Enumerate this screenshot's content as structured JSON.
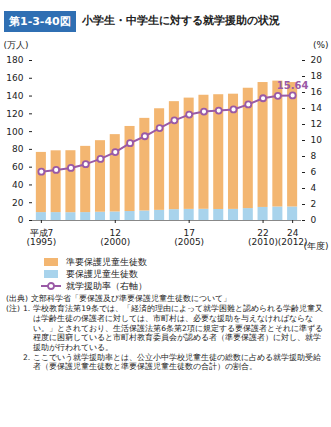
{
  "chart_data": {
    "type": "bar",
    "figure_number": "第1-3-40図",
    "title": "小学生・中学生に対する就学援助の状況",
    "categories": [
      "平成7\n(1995)",
      null,
      null,
      null,
      null,
      "12\n(2000)",
      null,
      null,
      null,
      null,
      "17\n(2005)",
      null,
      null,
      null,
      null,
      "22\n(2010)",
      null,
      "24\n(2012)"
    ],
    "xlabel": "(年度)",
    "ylabel": "(万人)",
    "y2label": "(%)",
    "stacked": true,
    "series": [
      {
        "name": "準要保護児童生徒数",
        "type": "bar",
        "color": "#f3b671",
        "values": [
          67.7,
          69.5,
          69.7,
          74.5,
          80.5,
          87.0,
          95.7,
          104.2,
          114.3,
          121.5,
          125.2,
          128.3,
          129.1,
          129.6,
          135.4,
          140.5,
          141.6,
          140.0
        ]
      },
      {
        "name": "要保護児童生徒数",
        "type": "bar",
        "color": "#a8d3ec",
        "values": [
          8.9,
          8.9,
          8.8,
          8.9,
          9.3,
          9.6,
          10.1,
          10.7,
          11.4,
          12.2,
          12.5,
          12.6,
          12.4,
          12.5,
          13.4,
          14.7,
          15.2,
          15.2
        ]
      },
      {
        "name": "就学援助率（右軸）",
        "type": "line",
        "axis": "y2",
        "color": "#9a5aa6",
        "marker": "circle",
        "values": [
          6.1,
          6.32,
          6.57,
          7.04,
          7.7,
          8.55,
          9.66,
          10.53,
          11.55,
          12.52,
          13.24,
          13.62,
          13.74,
          13.88,
          14.51,
          15.28,
          15.58,
          15.64
        ],
        "value_labels": [
          null,
          null,
          null,
          null,
          null,
          null,
          null,
          null,
          null,
          null,
          null,
          null,
          null,
          null,
          null,
          null,
          null,
          "15.64"
        ]
      }
    ],
    "ylim": [
      0,
      180
    ],
    "yticks": [
      0,
      20,
      40,
      60,
      80,
      100,
      120,
      140,
      160,
      180
    ],
    "y2lim": [
      0,
      20
    ],
    "y2ticks": [
      0,
      2,
      4,
      6,
      8,
      10,
      12,
      14,
      16,
      18,
      20
    ],
    "grid": false,
    "legend": "bottom",
    "source": [
      "(出典)",
      "文部科学省「要保護及び準要保護児童生徒数について」"
    ],
    "notes_lead": "(注)",
    "notes": [
      [
        "1.",
        "学校教育法第19条では、「経済的理由によって就学困難と認められる学齢児童又は学齢生徒の保護者に対しては、市町村は、必要な援助を与えなければならない。」とされており、生活保護法第6条第2項に規定する要保護者とそれに準ずる程度に困窮していると市町村教育委員会が認める者（準要保護者）に対し、就学援助が行われている。"
      ],
      [
        "2.",
        "ここでいう就学援助率とは、公立小中学校児童生徒の総数に占める就学援助受給者（要保護児童生徒数と準要保護児童生徒数の合計）の割合。"
      ]
    ]
  }
}
